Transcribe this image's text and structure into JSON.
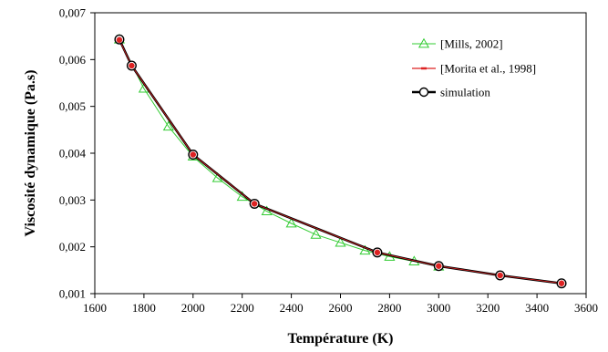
{
  "chart_data": {
    "type": "line",
    "xlabel": "Température (K)",
    "ylabel": "Viscosité dynamique (Pa.s)",
    "xlim": [
      1600,
      3600
    ],
    "ylim": [
      0.001,
      0.007
    ],
    "x_ticks": [
      1600,
      1800,
      2000,
      2200,
      2400,
      2600,
      2800,
      3000,
      3200,
      3400,
      3600
    ],
    "x_tick_labels": [
      "1600",
      "1800",
      "2000",
      "2200",
      "2400",
      "2600",
      "2800",
      "3000",
      "3200",
      "3400",
      "3600"
    ],
    "y_ticks": [
      0.001,
      0.002,
      0.003,
      0.004,
      0.005,
      0.006,
      0.007
    ],
    "y_tick_labels": [
      "0,001",
      "0,002",
      "0,003",
      "0,004",
      "0,005",
      "0,006",
      "0,007"
    ],
    "grid": false,
    "legend_position": "top-right",
    "series": [
      {
        "name": "[Mills, 2002]",
        "color": "#33cc33",
        "marker": "triangle",
        "x": [
          1700,
          1800,
          1900,
          2000,
          2100,
          2200,
          2300,
          2400,
          2500,
          2600,
          2700,
          2800,
          2900,
          3000
        ],
        "y": [
          0.00643,
          0.00538,
          0.00457,
          0.00393,
          0.00347,
          0.00307,
          0.00276,
          0.0025,
          0.00226,
          0.00209,
          0.00192,
          0.00179,
          0.00169,
          0.00158
        ]
      },
      {
        "name": "[Morita et al., 1998]",
        "color": "#dd2222",
        "marker": "dot",
        "x": [
          1700,
          1750,
          2000,
          2250,
          2750,
          3000,
          3250,
          3500
        ],
        "y": [
          0.00642,
          0.00587,
          0.00397,
          0.00292,
          0.00188,
          0.00159,
          0.00139,
          0.00122
        ]
      },
      {
        "name": "simulation",
        "color": "#000000",
        "marker": "circle",
        "x": [
          1700,
          1750,
          2000,
          2250,
          2750,
          3000,
          3250,
          3500
        ],
        "y": [
          0.00643,
          0.00587,
          0.00397,
          0.00292,
          0.00188,
          0.00159,
          0.00139,
          0.00122
        ]
      }
    ]
  }
}
